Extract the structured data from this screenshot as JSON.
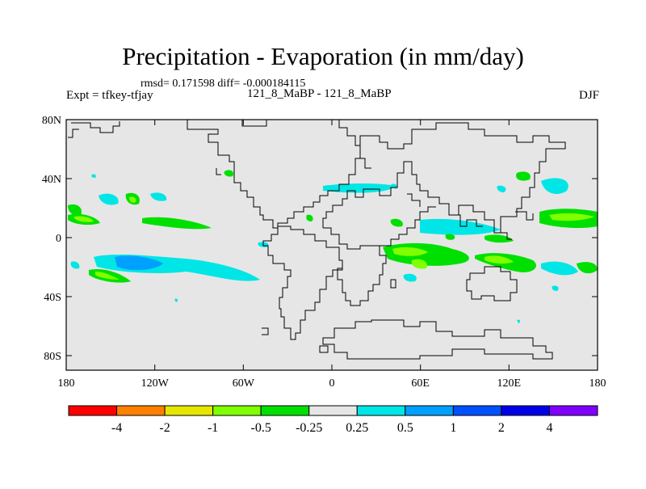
{
  "title": "Precipitation - Evaporation (in mm/day)",
  "stats": "rmsd= 0.171598 diff= -0.000184115",
  "expt": "Expt = tfkey-tfjay",
  "experiment": "121_8_MaBP - 121_8_MaBP",
  "season": "DJF",
  "axes": {
    "lat_ticks": [
      "80N",
      "40N",
      "0",
      "40S",
      "80S"
    ],
    "lon_ticks": [
      "180",
      "120W",
      "60W",
      "0",
      "60E",
      "120E",
      "180"
    ]
  },
  "colorbar": {
    "colors": [
      "#ff0000",
      "#ff8000",
      "#e6e600",
      "#80ff00",
      "#00e000",
      "#e6e6e6",
      "#00e6e6",
      "#00a0ff",
      "#0050ff",
      "#0000e6",
      "#8000ff"
    ],
    "labels": [
      "-4",
      "-2",
      "-1",
      "-0.5",
      "-0.25",
      "0.25",
      "0.5",
      "1",
      "2",
      "4"
    ]
  }
}
